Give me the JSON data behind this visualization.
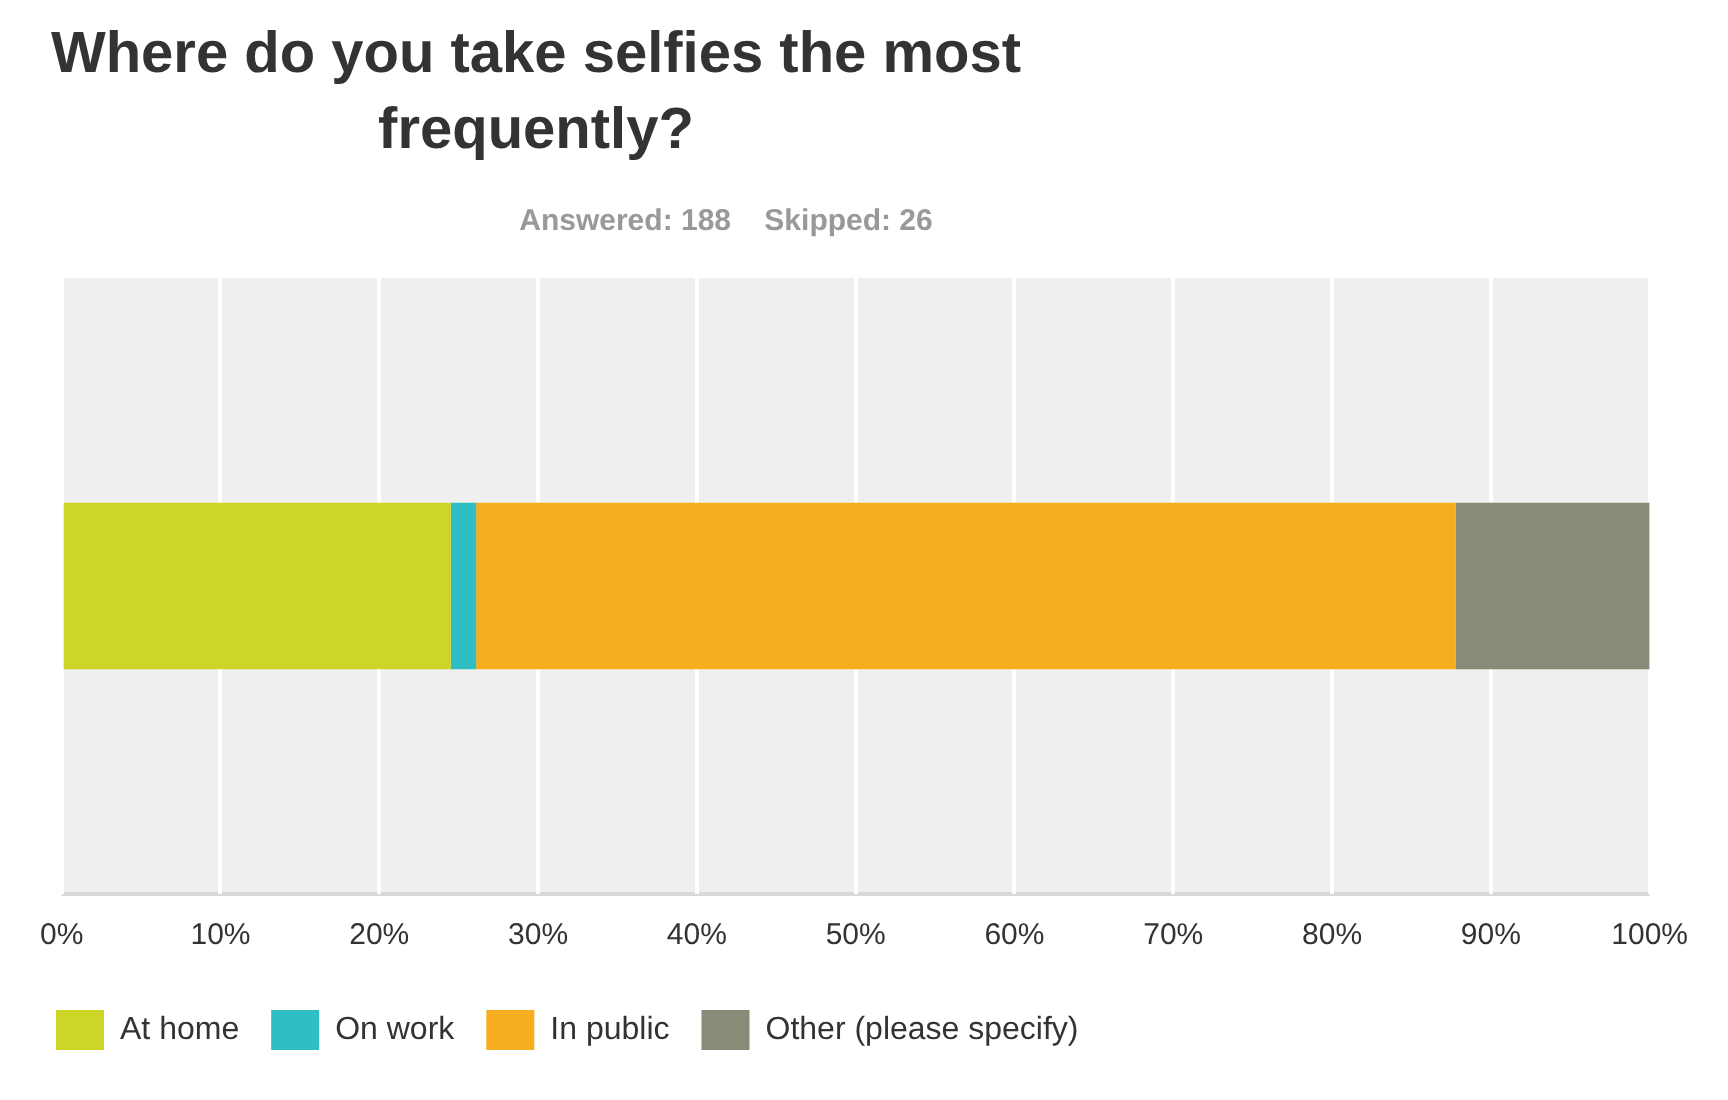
{
  "chart_data": {
    "type": "bar",
    "title": "Where do you take selfies the most frequently?",
    "subtitle": "Answered: 188    Skipped: 26",
    "orientation": "horizontal",
    "stacked": true,
    "categories": [
      null
    ],
    "series": [
      {
        "name": "At home",
        "color": "#cdd526",
        "values": [
          24.5
        ]
      },
      {
        "name": "On work",
        "color": "#2fbec1",
        "values": [
          1.6
        ]
      },
      {
        "name": "In public",
        "color": "#f6ae1e",
        "values": [
          61.7
        ]
      },
      {
        "name": "Other (please specify)",
        "color": "#8a8a78",
        "values": [
          12.2
        ]
      }
    ],
    "xlim": [
      0,
      100
    ],
    "xticks": [
      {
        "value": 0,
        "label": "0%"
      },
      {
        "value": 10,
        "label": "10%"
      },
      {
        "value": 20,
        "label": "20%"
      },
      {
        "value": 30,
        "label": "30%"
      },
      {
        "value": 40,
        "label": "40%"
      },
      {
        "value": 50,
        "label": "50%"
      },
      {
        "value": 60,
        "label": "60%"
      },
      {
        "value": 70,
        "label": "70%"
      },
      {
        "value": 80,
        "label": "80%"
      },
      {
        "value": 90,
        "label": "90%"
      },
      {
        "value": 100,
        "label": "100%"
      }
    ],
    "grid": "x",
    "legend": "bottom left"
  }
}
